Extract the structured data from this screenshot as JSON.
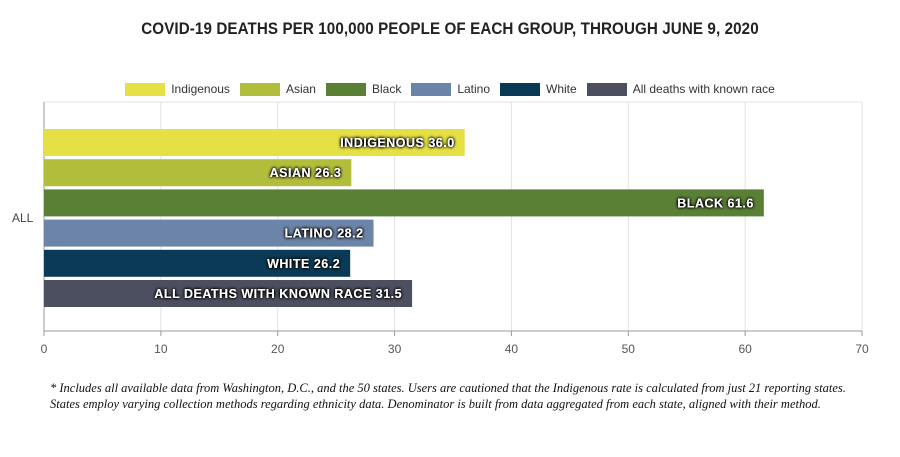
{
  "chart_data": {
    "type": "bar",
    "orientation": "horizontal",
    "title": "COVID-19 DEATHS PER 100,000 PEOPLE OF EACH GROUP, THROUGH JUNE 9, 2020",
    "categories": [
      "ALL"
    ],
    "series": [
      {
        "name": "Indigenous",
        "label": "INDIGENOUS",
        "values": [
          36.0
        ],
        "color": "#e5e043"
      },
      {
        "name": "Asian",
        "label": "ASIAN",
        "values": [
          26.3
        ],
        "color": "#b2be3b"
      },
      {
        "name": "Black",
        "label": "BLACK",
        "values": [
          61.6
        ],
        "color": "#5a8035"
      },
      {
        "name": "Latino",
        "label": "LATINO",
        "values": [
          28.2
        ],
        "color": "#6b84a7"
      },
      {
        "name": "White",
        "label": "WHITE",
        "values": [
          26.2
        ],
        "color": "#0b3a56"
      },
      {
        "name": "All deaths with known race",
        "label": "ALL DEATHS WITH KNOWN RACE",
        "values": [
          31.5
        ],
        "color": "#4c4f5f"
      }
    ],
    "xlim": [
      0,
      70
    ],
    "xticks": [
      0,
      10,
      20,
      30,
      40,
      50,
      60,
      70
    ],
    "grid": true,
    "legend_position": "top"
  },
  "footnote": "* Includes all available data from Washington, D.C., and the 50 states. Users are cautioned that the Indigenous rate is calculated from just 21 reporting states. States employ varying collection methods regarding ethnicity data. Denominator is built from data aggregated from each state, aligned with their method."
}
